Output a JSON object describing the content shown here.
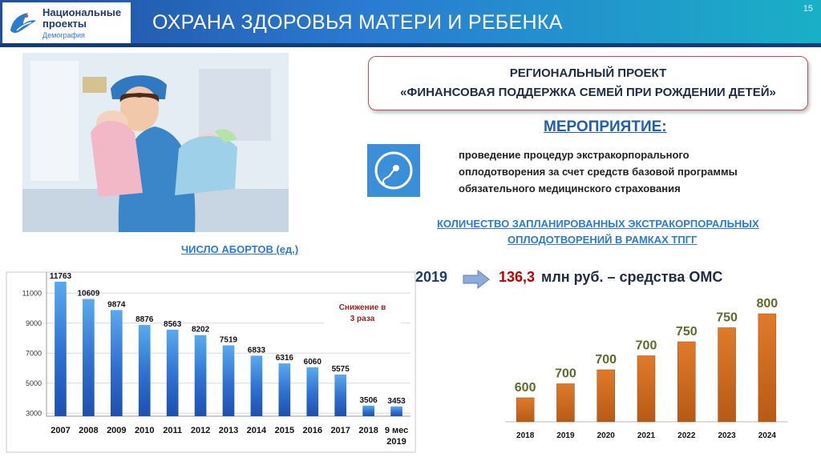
{
  "header": {
    "logo_line1": "Национальные",
    "logo_line2": "проекты",
    "logo_sub": "Демография",
    "title": "ОХРАНА ЗДОРОВЬЯ МАТЕРИ И РЕБЕНКА",
    "page_number": "15"
  },
  "project": {
    "line1": "РЕГИОНАЛЬНЫЙ ПРОЕКТ",
    "line2": "«ФИНАНСОВАЯ ПОДДЕРЖКА СЕМЕЙ ПРИ РОЖДЕНИИ ДЕТЕЙ»"
  },
  "event": {
    "heading": "МЕРОПРИЯТИЕ:",
    "line1": "проведение процедур экстракорпорального",
    "line2": "оплодотворения за счет средств базовой программы",
    "line3": "обязательного медицинского страхования"
  },
  "planned": {
    "line1": "КОЛИЧЕСТВО ЗАПЛАНИРОВАННЫХ ЭКСТРАКОРПОРАЛЬНЫХ",
    "line2": "ОПЛОДОТВОРЕНИЙ В РАМКАХ ТПГГ"
  },
  "funding": {
    "year": "2019",
    "amount": "136,3",
    "rest": "млн руб. – средства ОМС"
  },
  "colors": {
    "header_blue": "#1f4e9e",
    "abort_bar": "#2f6fd0",
    "eco_bar": "#c9651c",
    "accent_red": "#c00000"
  },
  "chart_data": [
    {
      "type": "bar",
      "title": "ЧИСЛО АБОРТОВ (ед.)",
      "categories": [
        "2007",
        "2008",
        "2009",
        "2010",
        "2011",
        "2012",
        "2013",
        "2014",
        "2015",
        "2016",
        "2017",
        "2018",
        "9 мес 2019"
      ],
      "values": [
        11763,
        10609,
        9874,
        8876,
        8563,
        8202,
        7519,
        6833,
        6316,
        6060,
        5575,
        3506,
        3453
      ],
      "ylim": [
        3000,
        12000
      ],
      "yticks": [
        "3000",
        "5000",
        "7000",
        "9000",
        "11000"
      ],
      "grid": true,
      "annotation_line1": "Снижение в",
      "annotation_line2": "3 раза"
    },
    {
      "type": "bar",
      "title": "",
      "categories": [
        "2018",
        "2019",
        "2020",
        "2021",
        "2022",
        "2023",
        "2024"
      ],
      "values": [
        600,
        700,
        700,
        700,
        750,
        750,
        800
      ],
      "grid": false
    }
  ]
}
